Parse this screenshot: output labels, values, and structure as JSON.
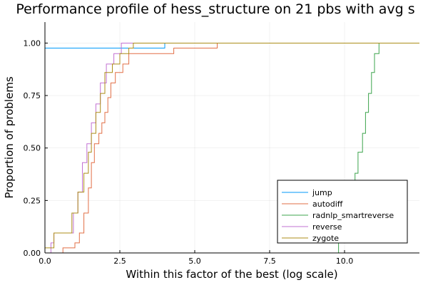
{
  "chart_data": {
    "type": "line",
    "step": true,
    "title": "Performance profile of hess_structure on 21 pbs with avg s",
    "xlabel": "Within this factor of the best (log scale)",
    "ylabel": "Proportion of problems",
    "xlim": [
      0,
      12.5
    ],
    "ylim": [
      0,
      1.1
    ],
    "x_ticks": [
      0.0,
      2.5,
      5.0,
      7.5,
      10.0
    ],
    "x_tick_labels": [
      "0.0",
      "2.5",
      "5.0",
      "7.5",
      "10.0"
    ],
    "y_ticks": [
      0.0,
      0.25,
      0.5,
      0.75,
      1.0
    ],
    "y_tick_labels": [
      "0.00",
      "0.25",
      "0.50",
      "0.75",
      "1.00"
    ],
    "grid": true,
    "legend_position": "bottom-right",
    "series": [
      {
        "name": "jump",
        "color": "#009AFA",
        "points": [
          [
            0,
            0.976
          ],
          [
            4.0,
            0.976
          ],
          [
            4.0,
            1.0
          ],
          [
            12.5,
            1.0
          ]
        ]
      },
      {
        "name": "autodiff",
        "color": "#E26F46",
        "points": [
          [
            0.6,
            0.0
          ],
          [
            0.6,
            0.024
          ],
          [
            1.0,
            0.024
          ],
          [
            1.0,
            0.048
          ],
          [
            1.15,
            0.048
          ],
          [
            1.15,
            0.095
          ],
          [
            1.3,
            0.095
          ],
          [
            1.3,
            0.19
          ],
          [
            1.45,
            0.19
          ],
          [
            1.45,
            0.31
          ],
          [
            1.55,
            0.31
          ],
          [
            1.55,
            0.43
          ],
          [
            1.65,
            0.43
          ],
          [
            1.65,
            0.52
          ],
          [
            1.8,
            0.52
          ],
          [
            1.8,
            0.57
          ],
          [
            1.9,
            0.57
          ],
          [
            1.9,
            0.62
          ],
          [
            2.0,
            0.62
          ],
          [
            2.0,
            0.67
          ],
          [
            2.1,
            0.67
          ],
          [
            2.1,
            0.74
          ],
          [
            2.2,
            0.74
          ],
          [
            2.2,
            0.81
          ],
          [
            2.35,
            0.81
          ],
          [
            2.35,
            0.86
          ],
          [
            2.6,
            0.86
          ],
          [
            2.6,
            0.9
          ],
          [
            2.8,
            0.9
          ],
          [
            2.8,
            0.95
          ],
          [
            4.3,
            0.95
          ],
          [
            4.3,
            0.976
          ],
          [
            5.75,
            0.976
          ],
          [
            5.75,
            1.0
          ],
          [
            12.5,
            1.0
          ]
        ]
      },
      {
        "name": "radnlp_smartreverse",
        "color": "#3DA44D",
        "points": [
          [
            9.8,
            0.0
          ],
          [
            9.8,
            0.048
          ],
          [
            9.95,
            0.048
          ],
          [
            9.95,
            0.095
          ],
          [
            10.05,
            0.095
          ],
          [
            10.05,
            0.19
          ],
          [
            10.2,
            0.19
          ],
          [
            10.2,
            0.29
          ],
          [
            10.35,
            0.29
          ],
          [
            10.35,
            0.38
          ],
          [
            10.45,
            0.38
          ],
          [
            10.45,
            0.48
          ],
          [
            10.6,
            0.48
          ],
          [
            10.6,
            0.57
          ],
          [
            10.7,
            0.57
          ],
          [
            10.7,
            0.67
          ],
          [
            10.8,
            0.67
          ],
          [
            10.8,
            0.76
          ],
          [
            10.9,
            0.76
          ],
          [
            10.9,
            0.86
          ],
          [
            11.0,
            0.86
          ],
          [
            11.0,
            0.95
          ],
          [
            11.15,
            0.95
          ],
          [
            11.15,
            1.0
          ],
          [
            12.5,
            1.0
          ]
        ]
      },
      {
        "name": "reverse",
        "color": "#C271D2",
        "points": [
          [
            0.2,
            0.0
          ],
          [
            0.2,
            0.048
          ],
          [
            0.3,
            0.048
          ],
          [
            0.3,
            0.095
          ],
          [
            0.95,
            0.095
          ],
          [
            0.95,
            0.19
          ],
          [
            1.1,
            0.19
          ],
          [
            1.1,
            0.29
          ],
          [
            1.25,
            0.29
          ],
          [
            1.25,
            0.43
          ],
          [
            1.4,
            0.43
          ],
          [
            1.4,
            0.52
          ],
          [
            1.55,
            0.52
          ],
          [
            1.55,
            0.62
          ],
          [
            1.7,
            0.62
          ],
          [
            1.7,
            0.71
          ],
          [
            1.85,
            0.71
          ],
          [
            1.85,
            0.81
          ],
          [
            2.05,
            0.81
          ],
          [
            2.05,
            0.9
          ],
          [
            2.3,
            0.9
          ],
          [
            2.3,
            0.95
          ],
          [
            2.55,
            0.95
          ],
          [
            2.55,
            1.0
          ],
          [
            12.5,
            1.0
          ]
        ]
      },
      {
        "name": "zygote",
        "color": "#AC8D18",
        "points": [
          [
            0,
            0.024
          ],
          [
            0.3,
            0.024
          ],
          [
            0.3,
            0.095
          ],
          [
            0.9,
            0.095
          ],
          [
            0.9,
            0.19
          ],
          [
            1.1,
            0.19
          ],
          [
            1.1,
            0.29
          ],
          [
            1.3,
            0.29
          ],
          [
            1.3,
            0.38
          ],
          [
            1.45,
            0.38
          ],
          [
            1.45,
            0.48
          ],
          [
            1.55,
            0.48
          ],
          [
            1.55,
            0.57
          ],
          [
            1.7,
            0.57
          ],
          [
            1.7,
            0.67
          ],
          [
            1.85,
            0.67
          ],
          [
            1.85,
            0.76
          ],
          [
            2.0,
            0.76
          ],
          [
            2.0,
            0.86
          ],
          [
            2.25,
            0.86
          ],
          [
            2.25,
            0.9
          ],
          [
            2.5,
            0.9
          ],
          [
            2.5,
            0.95
          ],
          [
            2.8,
            0.95
          ],
          [
            2.8,
            0.976
          ],
          [
            2.95,
            0.976
          ],
          [
            2.95,
            1.0
          ],
          [
            12.5,
            1.0
          ]
        ]
      }
    ]
  }
}
